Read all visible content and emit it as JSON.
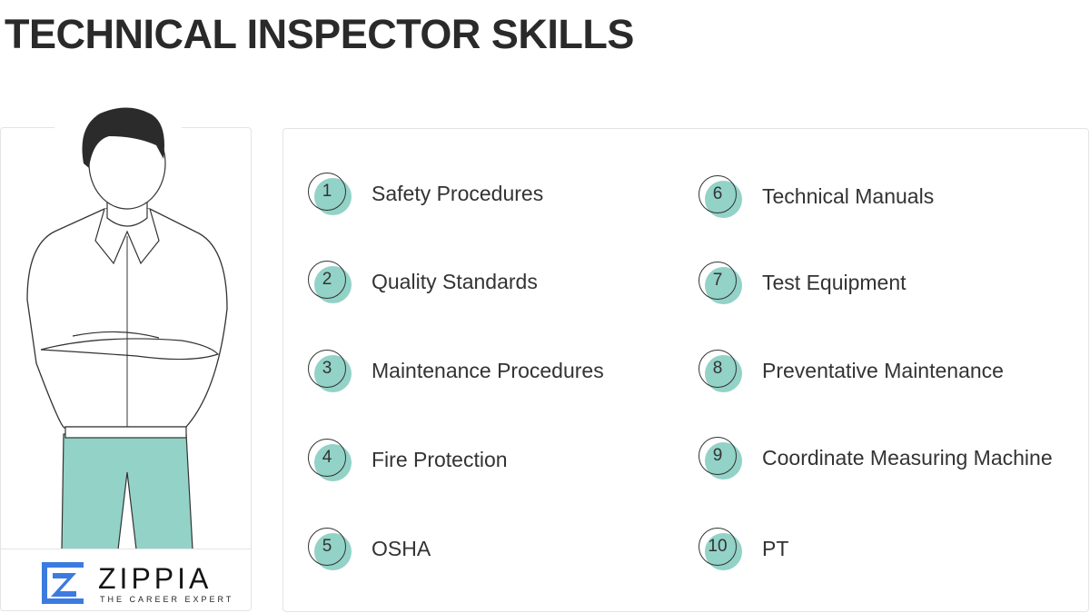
{
  "title": "TECHNICAL INSPECTOR SKILLS",
  "colors": {
    "accent": "#93d2c7",
    "logo_blue": "#3b7be0"
  },
  "skills": [
    {
      "num": "1",
      "label": "Safety Procedures"
    },
    {
      "num": "2",
      "label": "Quality Standards"
    },
    {
      "num": "3",
      "label": "Maintenance Procedures"
    },
    {
      "num": "4",
      "label": "Fire Protection"
    },
    {
      "num": "5",
      "label": "OSHA"
    },
    {
      "num": "6",
      "label": "Technical Manuals"
    },
    {
      "num": "7",
      "label": "Test Equipment"
    },
    {
      "num": "8",
      "label": "Preventative Maintenance"
    },
    {
      "num": "9",
      "label": "Coordinate Measuring Machine"
    },
    {
      "num": "10",
      "label": "PT"
    }
  ],
  "logo": {
    "name": "ZIPPIA",
    "tagline": "THE CAREER EXPERT"
  }
}
